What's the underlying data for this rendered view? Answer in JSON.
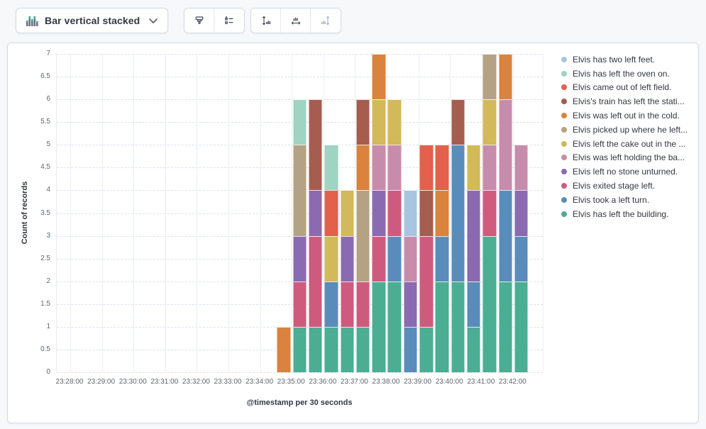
{
  "toolbar": {
    "chart_type_button": {
      "label": "Bar vertical stacked",
      "icon": "bar-vertical-stacked-icon",
      "chevron": "chevron-down-icon"
    },
    "buttons": [
      {
        "name": "visual-options",
        "icon": "paint-roller-icon",
        "disabled": false
      },
      {
        "name": "legend-options",
        "icon": "legend-list-icon",
        "disabled": false
      },
      {
        "name": "left-axis",
        "icon": "left-axis-icon",
        "disabled": false
      },
      {
        "name": "bottom-axis",
        "icon": "bottom-axis-icon",
        "disabled": false
      },
      {
        "name": "right-axis",
        "icon": "right-axis-icon",
        "disabled": true
      }
    ]
  },
  "chart_data": {
    "type": "bar",
    "stacked": true,
    "legend_position": "right",
    "title": "",
    "xlabel": "@timestamp per 30 seconds",
    "ylabel": "Count of records",
    "ylim": [
      0,
      7
    ],
    "y_ticks": [
      "0",
      "0.5",
      "1",
      "1.5",
      "2",
      "2.5",
      "3",
      "3.5",
      "4",
      "4.5",
      "5",
      "5.5",
      "6",
      "6.5",
      "7"
    ],
    "x_axis_ticks": [
      "23:28:00",
      "23:29:00",
      "23:30:00",
      "23:31:00",
      "23:32:00",
      "23:33:00",
      "23:34:00",
      "23:35:00",
      "23:36:00",
      "23:37:00",
      "23:38:00",
      "23:39:00",
      "23:40:00",
      "23:41:00",
      "23:42:00"
    ],
    "x": [
      "23:34:30",
      "23:35:00",
      "23:35:30",
      "23:36:00",
      "23:36:30",
      "23:37:00",
      "23:37:30",
      "23:38:00",
      "23:38:30",
      "23:39:00",
      "23:39:30",
      "23:40:00",
      "23:40:30",
      "23:41:00",
      "23:41:30",
      "23:42:00"
    ],
    "series": [
      {
        "label": "Elvis has two left feet.",
        "color": "#A7C5DF",
        "values": [
          0,
          0,
          0,
          0,
          0,
          0,
          0,
          0,
          1,
          0,
          0,
          0,
          0,
          0,
          0,
          0
        ]
      },
      {
        "label": "Elvis has left the oven on.",
        "color": "#9FD3C2",
        "values": [
          0,
          1,
          0,
          1,
          0,
          0,
          0,
          0,
          0,
          0,
          0,
          0,
          0,
          0,
          0,
          0
        ]
      },
      {
        "label": "Elvis came out of left field.",
        "color": "#E2604C",
        "values": [
          0,
          0,
          0,
          1,
          0,
          0,
          0,
          0,
          0,
          1,
          1,
          0,
          0,
          0,
          0,
          0
        ]
      },
      {
        "label": "Elvis's train has left the stati...",
        "color": "#A55D50",
        "values": [
          0,
          0,
          2,
          0,
          0,
          1,
          0,
          0,
          0,
          1,
          0,
          1,
          0,
          0,
          0,
          0
        ]
      },
      {
        "label": "Elvis was left out in the cold.",
        "color": "#D9833F",
        "values": [
          1,
          0,
          0,
          0,
          0,
          1,
          1,
          0,
          0,
          0,
          1,
          0,
          0,
          0,
          1,
          0
        ]
      },
      {
        "label": "Elvis picked up where he left...",
        "color": "#B5A284",
        "values": [
          0,
          2,
          0,
          0,
          0,
          2,
          0,
          0,
          0,
          0,
          0,
          0,
          0,
          1,
          0,
          0
        ]
      },
      {
        "label": "Elvis left the cake out in the ...",
        "color": "#D2B95A",
        "values": [
          0,
          0,
          0,
          1,
          1,
          0,
          1,
          1,
          0,
          0,
          0,
          0,
          1,
          1,
          0,
          0
        ]
      },
      {
        "label": "Elvis was left holding the ba...",
        "color": "#C78CAC",
        "values": [
          0,
          0,
          0,
          0,
          0,
          0,
          1,
          1,
          1,
          0,
          0,
          0,
          0,
          1,
          2,
          1
        ]
      },
      {
        "label": "Elvis left no stone unturned.",
        "color": "#8A6AB0",
        "values": [
          0,
          1,
          1,
          0,
          1,
          0,
          1,
          0,
          1,
          0,
          0,
          0,
          2,
          0,
          0,
          1
        ]
      },
      {
        "label": "Elvis exited stage left.",
        "color": "#CE5B7E",
        "values": [
          0,
          1,
          2,
          0,
          1,
          1,
          1,
          1,
          0,
          2,
          0,
          0,
          0,
          1,
          0,
          0
        ]
      },
      {
        "label": "Elvis took a left turn.",
        "color": "#5A8CBB",
        "values": [
          0,
          0,
          0,
          1,
          0,
          0,
          0,
          1,
          1,
          0,
          1,
          3,
          1,
          0,
          2,
          1
        ]
      },
      {
        "label": "Elvis has left the building.",
        "color": "#4BAE92",
        "values": [
          0,
          1,
          1,
          1,
          1,
          1,
          2,
          2,
          0,
          1,
          2,
          2,
          1,
          3,
          2,
          2
        ]
      }
    ]
  }
}
